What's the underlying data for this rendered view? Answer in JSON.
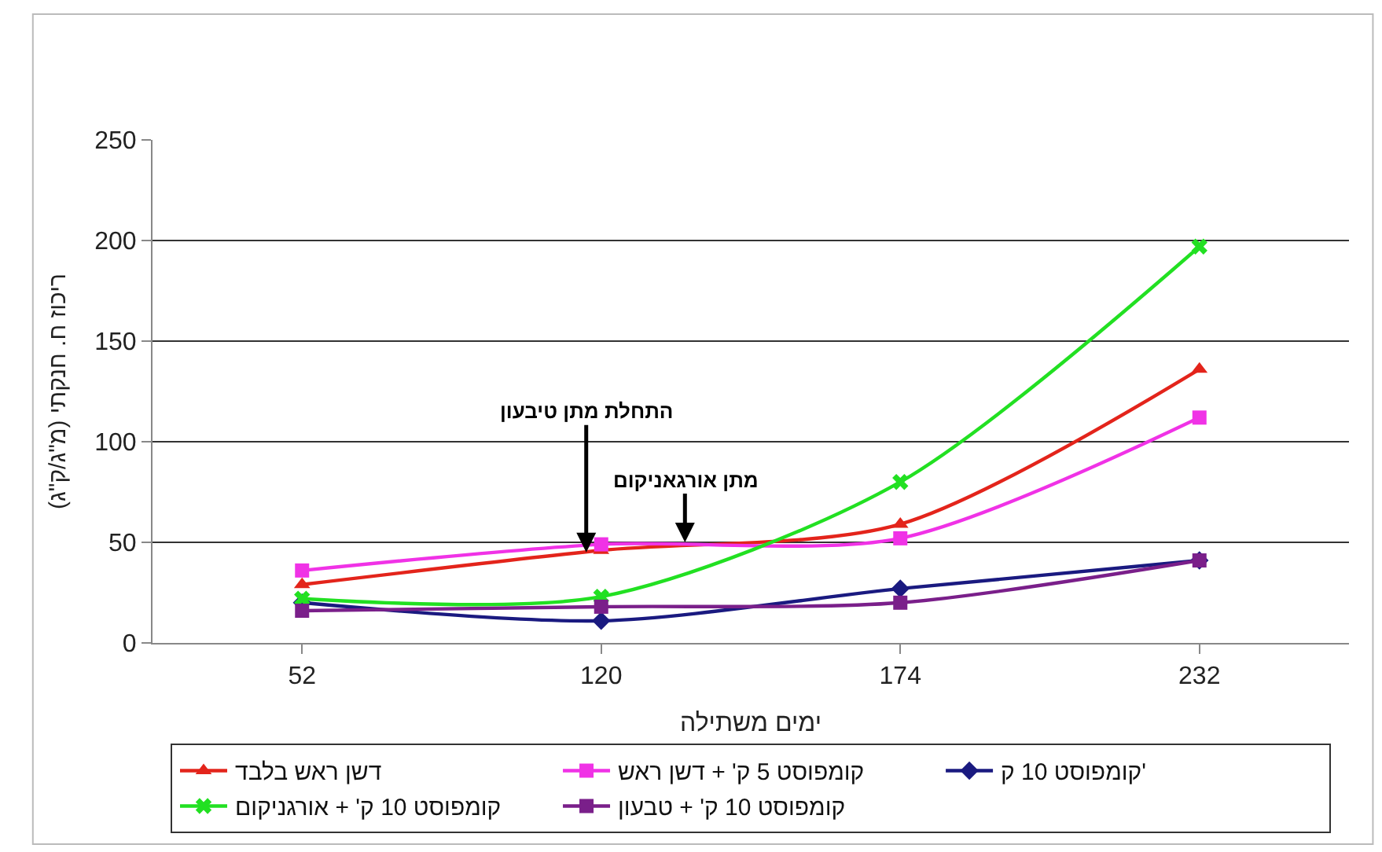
{
  "chart_data": {
    "type": "line",
    "xlabel": "ימים משתילה",
    "ylabel": "ריכוז ח. חנקתי (מ\"ג/ק\"ג)",
    "categories": [
      "52",
      "120",
      "174",
      "232"
    ],
    "series": [
      {
        "name": "דשן ראש בלבד",
        "color": "#e3241b",
        "marker": "triangle",
        "values": [
          29,
          46,
          59,
          136
        ]
      },
      {
        "name": "קומפוסט 5 ק' + דשן ראש",
        "color": "#f032e6",
        "marker": "square",
        "values": [
          36,
          49,
          52,
          112
        ]
      },
      {
        "name": "קומפוסט 10 ק'",
        "color": "#1a1a80",
        "marker": "diamond",
        "values": [
          20,
          11,
          27,
          41
        ]
      },
      {
        "name": "קומפוסט 10 ק' + אורגניקום",
        "color": "#22e022",
        "marker": "cross",
        "values": [
          22,
          23,
          80,
          197
        ]
      },
      {
        "name": "קומפוסט 10 ק' + טבעון",
        "color": "#7a1f8a",
        "marker": "square",
        "values": [
          16,
          18,
          20,
          41
        ]
      }
    ],
    "annotations": [
      {
        "text": "התחלת מתן טיבעון",
        "y": 45
      },
      {
        "text": "מתן אורגאניקום",
        "y": 50
      }
    ],
    "ylim": [
      0,
      250
    ],
    "yticks": [
      0,
      50,
      100,
      150,
      200,
      250
    ],
    "grid": "y",
    "legend": "bottom"
  }
}
